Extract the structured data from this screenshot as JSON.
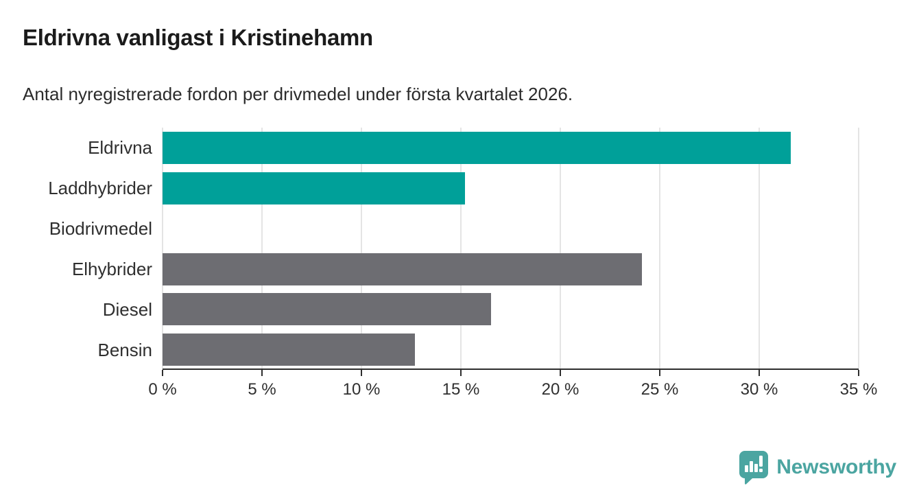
{
  "title": "Eldrivna vanligast i Kristinehamn",
  "subtitle": "Antal nyregistrerade fordon per drivmedel under första kvartalet 2026.",
  "chart_data": {
    "type": "bar",
    "orientation": "horizontal",
    "title": "Eldrivna vanligast i Kristinehamn",
    "subtitle": "Antal nyregistrerade fordon per drivmedel under första kvartalet 2026.",
    "categories": [
      "Eldrivna",
      "Laddhybrider",
      "Biodrivmedel",
      "Elhybrider",
      "Diesel",
      "Bensin"
    ],
    "values": [
      31.6,
      15.2,
      0,
      24.1,
      16.5,
      12.7
    ],
    "unit": "%",
    "bar_colors": [
      "#00a099",
      "#00a099",
      "#00a099",
      "#6d6d72",
      "#6d6d72",
      "#6d6d72"
    ],
    "xlim": [
      0,
      35
    ],
    "xticks": [
      0,
      5,
      10,
      15,
      20,
      25,
      30,
      35
    ],
    "xtick_labels": [
      "0 %",
      "5 %",
      "10 %",
      "15 %",
      "20 %",
      "25 %",
      "30 %",
      "35 %"
    ],
    "xlabel": "",
    "ylabel": "",
    "grid": true,
    "legend": false
  },
  "footer": {
    "brand": "Newsworthy",
    "logo_icon": "newsworthy-bubble-barchart-icon"
  },
  "colors": {
    "accent_teal": "#00a099",
    "neutral_gray": "#6d6d72",
    "grid": "#e4e4e4",
    "axis": "#2e2e2e",
    "text": "#2f2f2f",
    "title_text": "#1b1b1b",
    "brand_teal": "#4ba5a1"
  }
}
